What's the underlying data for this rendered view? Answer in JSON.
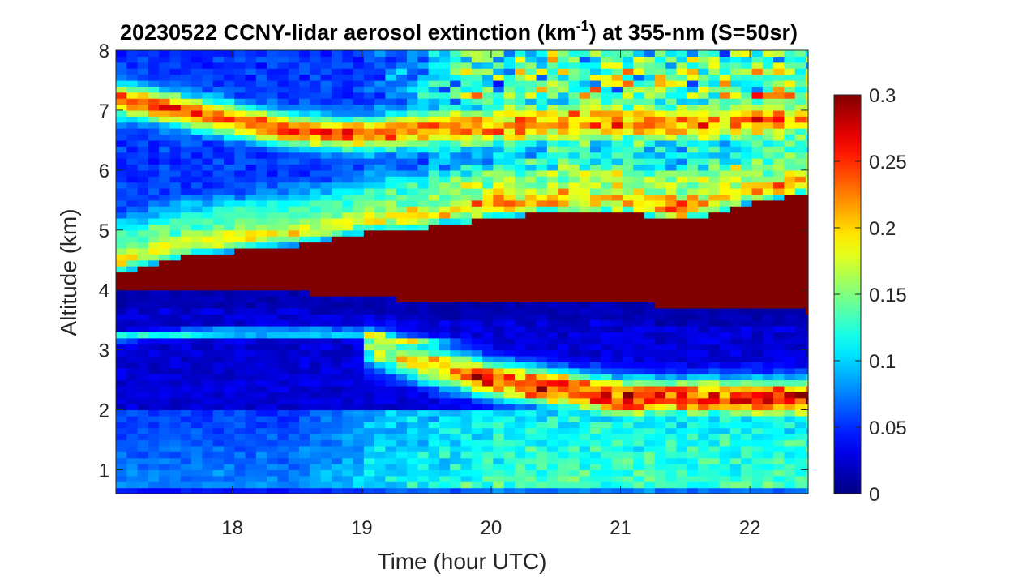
{
  "chart_data": {
    "type": "heatmap",
    "title": "20230522 CCNY-lidar aerosol extinction (km",
    "title_superscript": "-1",
    "title_suffix": ") at 355-nm (S=50sr)",
    "xlabel": "Time (hour UTC)",
    "ylabel": "Altitude (km)",
    "xlim": [
      17.1,
      22.45
    ],
    "ylim": [
      0.6,
      8.0
    ],
    "x_ticks": [
      18,
      19,
      20,
      21,
      22
    ],
    "y_ticks": [
      1,
      2,
      3,
      4,
      5,
      6,
      7,
      8
    ],
    "colormap": "jet",
    "color_limits": [
      0,
      0.3
    ],
    "colorbar_ticks": [
      "0",
      "0.05",
      "0.1",
      "0.15",
      "0.2",
      "0.25",
      "0.3"
    ],
    "colorbar_values": [
      0,
      0.05,
      0.1,
      0.15,
      0.2,
      0.25,
      0.3
    ],
    "colorbar_location": "right",
    "grid": false,
    "grid_x_step_hours": 0.0833,
    "grid_z_step_km": 0.1,
    "features": {
      "aerosol_layer_bottom": {
        "x": [
          17.1,
          18.0,
          19.0,
          19.5,
          20.0,
          21.0,
          22.0,
          22.45
        ],
        "y": [
          3.98,
          4.02,
          3.9,
          3.8,
          3.85,
          3.78,
          3.68,
          3.65
        ]
      },
      "aerosol_layer_top": {
        "x": [
          17.1,
          17.6,
          18.5,
          19.0,
          19.5,
          20.0,
          20.5,
          21.0,
          21.5,
          22.0,
          22.45
        ],
        "y": [
          4.25,
          4.55,
          4.75,
          4.95,
          5.05,
          5.2,
          5.3,
          5.3,
          5.15,
          5.45,
          5.6
        ]
      },
      "upper_layer_center": {
        "x": [
          17.1,
          18.0,
          18.5,
          19.0,
          19.5,
          20.0,
          20.5,
          21.0,
          21.5,
          22.0,
          22.45
        ],
        "y": [
          7.2,
          6.85,
          6.65,
          6.6,
          6.7,
          6.75,
          6.8,
          6.8,
          6.8,
          6.85,
          6.9
        ]
      },
      "lower_layer_center": {
        "x": [
          19.0,
          19.5,
          20.0,
          20.5,
          21.0,
          21.5,
          22.0,
          22.45
        ],
        "y": [
          3.05,
          2.75,
          2.5,
          2.35,
          2.2,
          2.2,
          2.2,
          2.2
        ]
      },
      "thin_layer_center": {
        "x": [
          17.1,
          18.0,
          19.0,
          19.3
        ],
        "y": [
          3.22,
          3.3,
          3.28,
          3.15
        ]
      }
    }
  }
}
